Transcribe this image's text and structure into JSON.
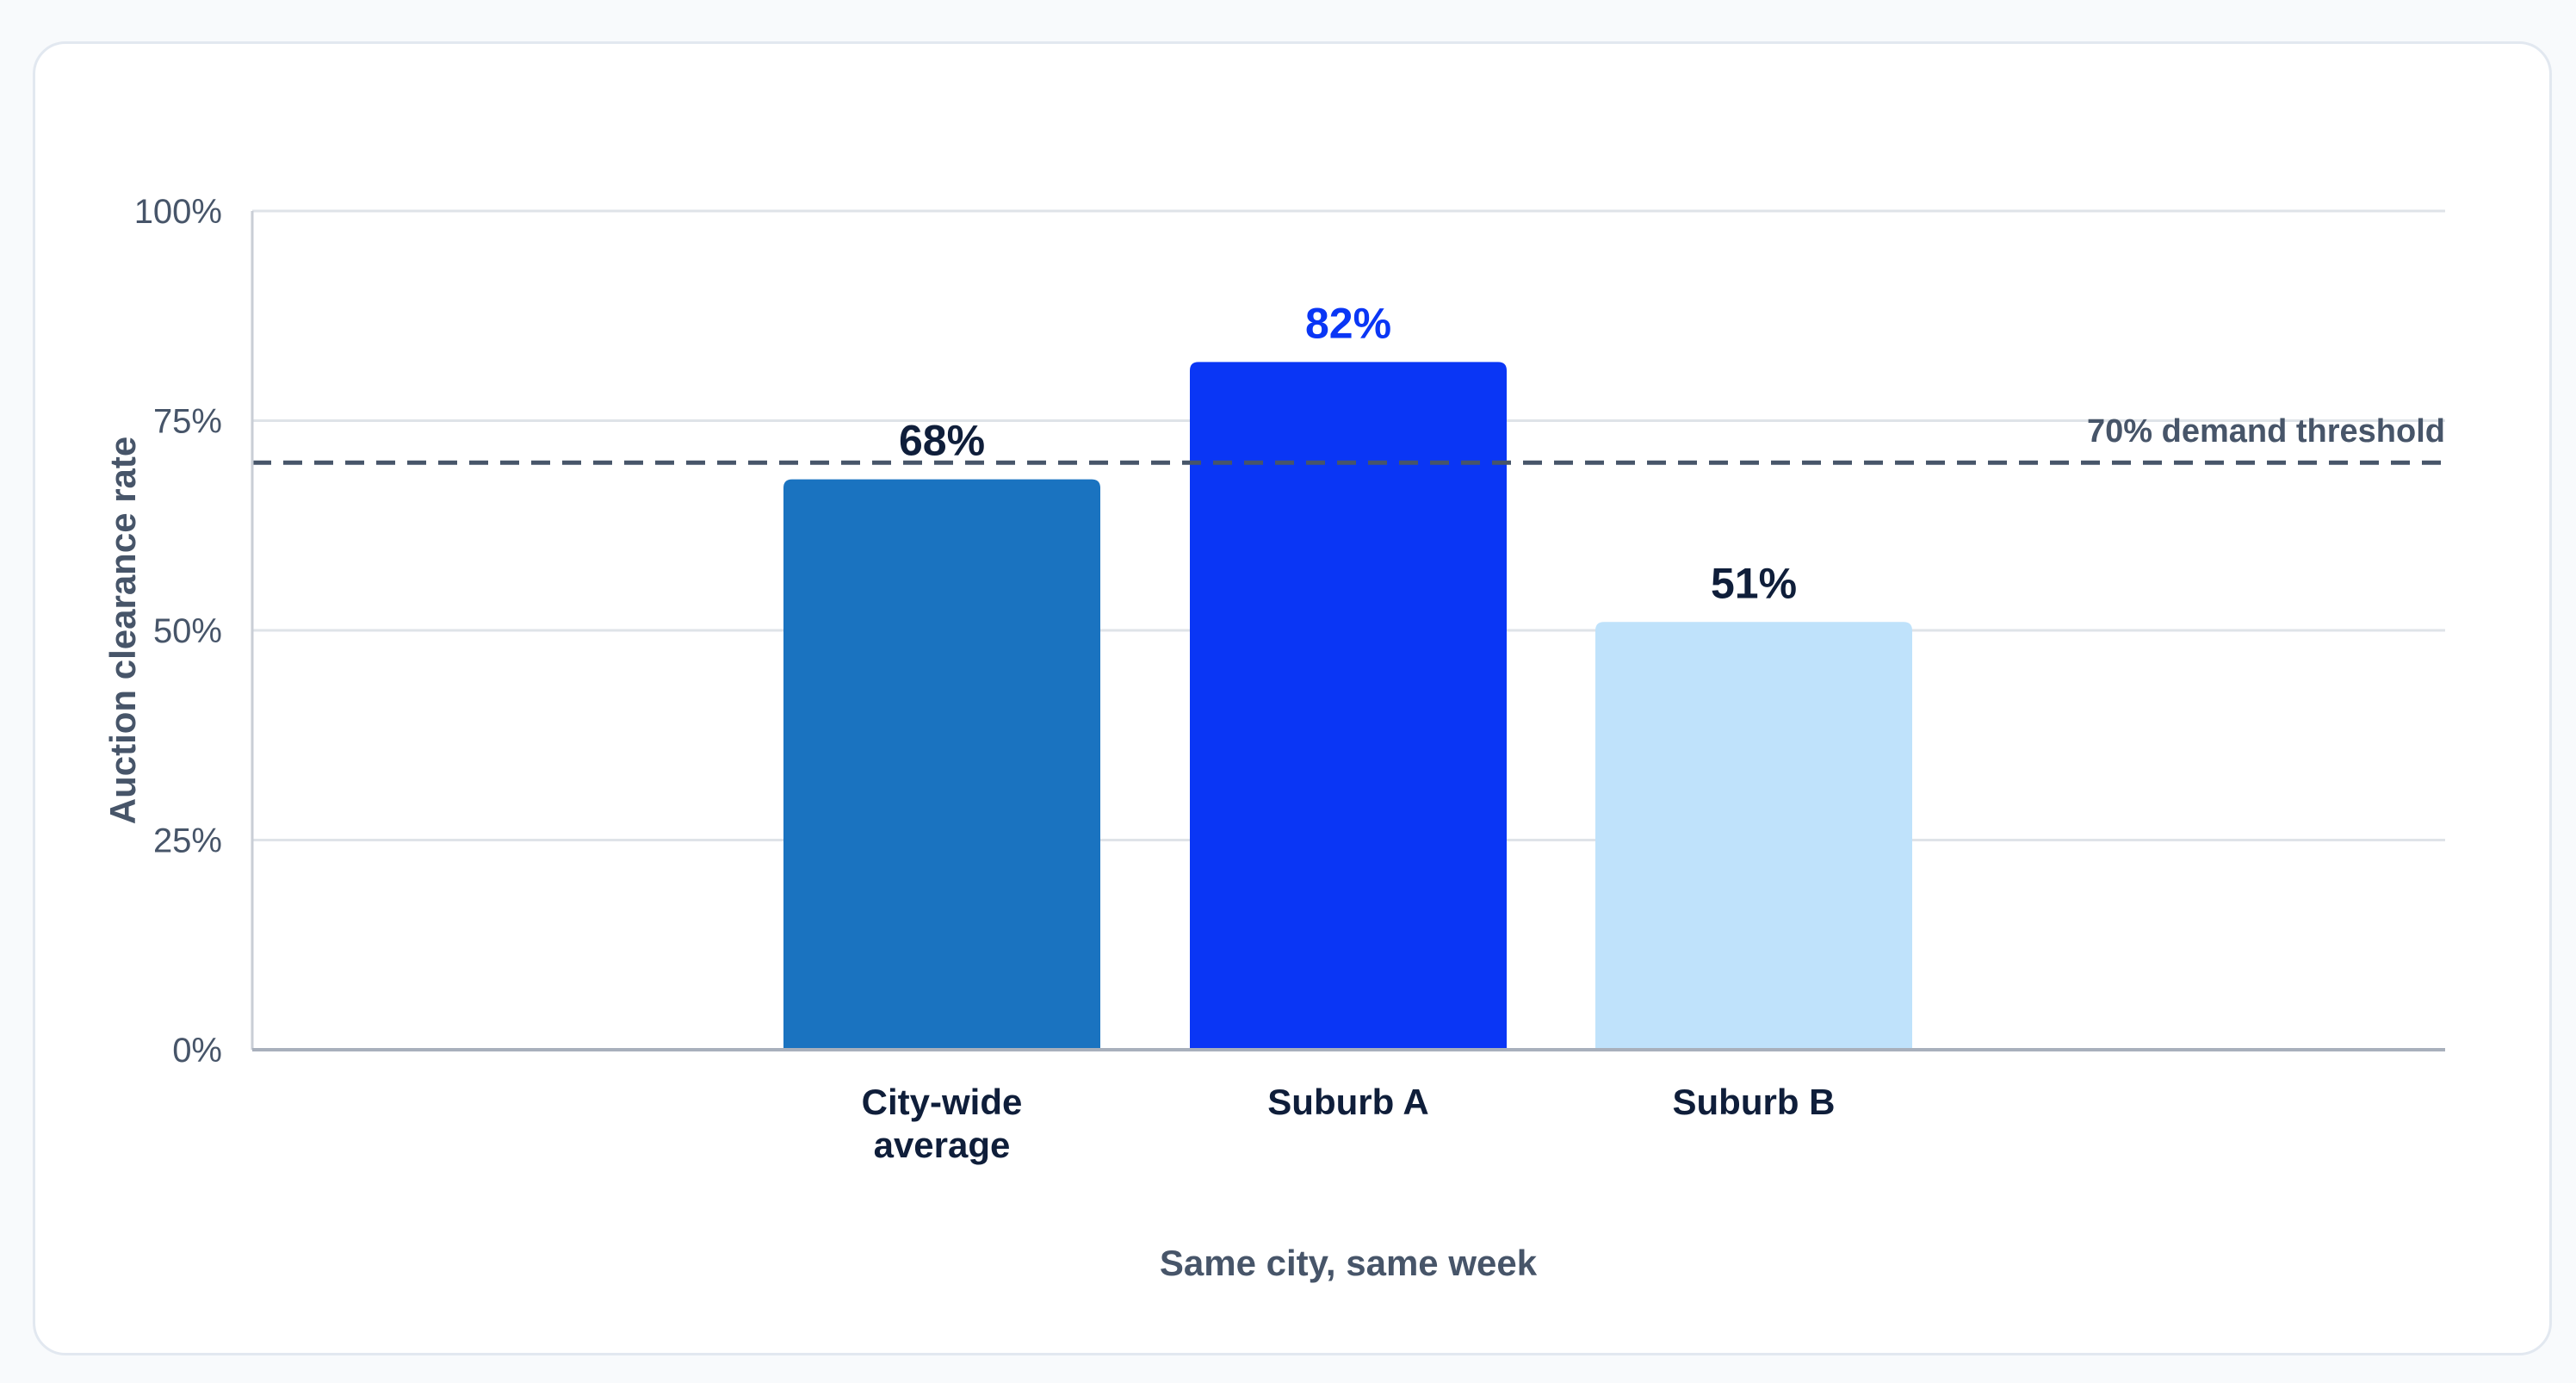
{
  "chart_data": {
    "type": "bar",
    "categories": [
      "City-wide average",
      "Suburb A",
      "Suburb B"
    ],
    "category_lines": [
      [
        "City-wide",
        "average"
      ],
      [
        "Suburb A"
      ],
      [
        "Suburb B"
      ]
    ],
    "values": [
      68,
      82,
      51
    ],
    "value_labels": [
      "68%",
      "82%",
      "51%"
    ],
    "bar_colors": [
      "#1a73c0",
      "#0a36f5",
      "#bfe2fb"
    ],
    "value_label_colors": [
      "#0f1e3a",
      "#0a36f5",
      "#0f1e3a"
    ],
    "xlabel": "Same city, same week",
    "ylabel": "Auction clearance rate",
    "ylim": [
      0,
      100
    ],
    "yticks": [
      0,
      25,
      50,
      75,
      100
    ],
    "ytick_labels": [
      "0%",
      "25%",
      "50%",
      "75%",
      "100%"
    ],
    "grid": true,
    "reference_line": {
      "value": 70,
      "label": "70% demand threshold",
      "style": "dashed",
      "color": "#475569"
    }
  }
}
